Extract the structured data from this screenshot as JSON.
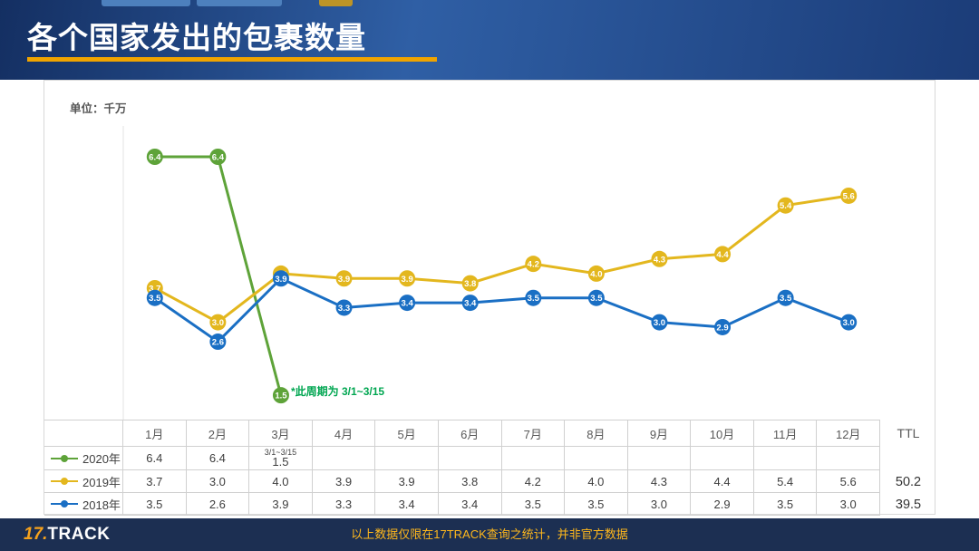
{
  "header": {
    "title": "各个国家发出的包裹数量",
    "accent_color": "#f0a400",
    "tab_colors": [
      "#4d80bd",
      "#4d80bd",
      "#bd9426"
    ]
  },
  "chart": {
    "unit_label": "单位：千万",
    "annotation": "*此周期为 3/1~3/15"
  },
  "table": {
    "ttl_label": "TTL"
  },
  "chart_data": {
    "type": "line",
    "title": "各个国家发出的包裹数量",
    "unit": "千万",
    "categories": [
      "1月",
      "2月",
      "3月",
      "4月",
      "5月",
      "6月",
      "7月",
      "8月",
      "9月",
      "10月",
      "11月",
      "12月"
    ],
    "series": [
      {
        "name": "2020年",
        "color": "#5ea339",
        "values": [
          6.4,
          6.4,
          1.5,
          null,
          null,
          null,
          null,
          null,
          null,
          null,
          null,
          null
        ],
        "ttl": "",
        "note": {
          "index": 2,
          "text": "3/1~3/15"
        }
      },
      {
        "name": "2019年",
        "color": "#e3b71e",
        "values": [
          3.7,
          3.0,
          4.0,
          3.9,
          3.9,
          3.8,
          4.2,
          4.0,
          4.3,
          4.4,
          5.4,
          5.6
        ],
        "ttl": "50.2"
      },
      {
        "name": "2018年",
        "color": "#1a6fc4",
        "values": [
          3.5,
          2.6,
          3.9,
          3.3,
          3.4,
          3.4,
          3.5,
          3.5,
          3.0,
          2.9,
          3.5,
          3.0
        ],
        "ttl": "39.5"
      }
    ],
    "ylim": [
      1,
      7
    ],
    "grid": false,
    "legend_position": "table-left",
    "data_labels": true
  },
  "footer": {
    "logo_prefix": "17.",
    "logo_suffix": "TRACK",
    "disclaimer": "以上数据仅限在17TRACK查询之统计，并非官方数据"
  }
}
